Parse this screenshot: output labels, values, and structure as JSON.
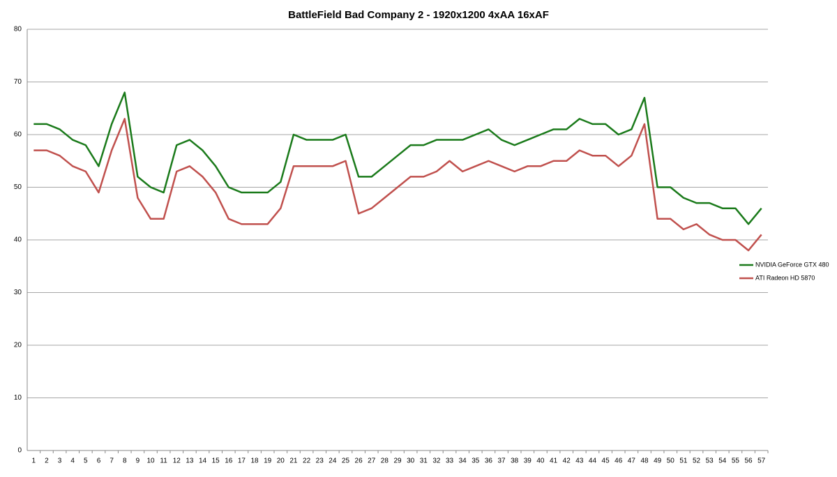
{
  "chart_data": {
    "type": "line",
    "title": "BattleField Bad Company 2 - 1920x1200 4xAA 16xAF",
    "categories": [
      1,
      2,
      3,
      4,
      5,
      6,
      7,
      8,
      9,
      10,
      11,
      12,
      13,
      14,
      15,
      16,
      17,
      18,
      19,
      20,
      21,
      22,
      23,
      24,
      25,
      26,
      27,
      28,
      29,
      30,
      31,
      32,
      33,
      34,
      35,
      36,
      37,
      38,
      39,
      40,
      41,
      42,
      43,
      44,
      45,
      46,
      47,
      48,
      49,
      50,
      51,
      52,
      53,
      54,
      55,
      56,
      57
    ],
    "series": [
      {
        "name": "NVIDIA GeForce GTX 480",
        "color": "#1a7a1a",
        "values": [
          62,
          62,
          61,
          59,
          58,
          54,
          62,
          68,
          52,
          50,
          49,
          58,
          59,
          57,
          54,
          50,
          49,
          49,
          49,
          51,
          60,
          59,
          59,
          59,
          60,
          52,
          52,
          54,
          56,
          58,
          58,
          59,
          59,
          59,
          60,
          61,
          59,
          58,
          59,
          60,
          61,
          61,
          63,
          62,
          62,
          60,
          61,
          67,
          50,
          50,
          48,
          47,
          47,
          46,
          46,
          43,
          46
        ]
      },
      {
        "name": "ATI Radeon HD 5870",
        "color": "#c0504d",
        "values": [
          57,
          57,
          56,
          54,
          53,
          49,
          57,
          63,
          48,
          44,
          44,
          53,
          54,
          52,
          49,
          44,
          43,
          43,
          43,
          46,
          54,
          54,
          54,
          54,
          55,
          45,
          46,
          48,
          50,
          52,
          52,
          53,
          55,
          53,
          54,
          55,
          54,
          53,
          54,
          54,
          55,
          55,
          57,
          56,
          56,
          54,
          56,
          62,
          44,
          44,
          42,
          43,
          41,
          40,
          40,
          38,
          41
        ]
      }
    ],
    "ylim": [
      0,
      80
    ],
    "yticks": [
      0,
      10,
      20,
      30,
      40,
      50,
      60,
      70,
      80
    ],
    "grid": true,
    "legend": "right"
  }
}
